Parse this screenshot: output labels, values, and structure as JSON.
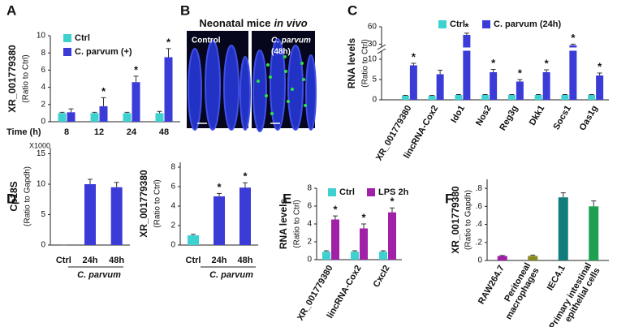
{
  "chart_data": [
    {
      "panel": "A",
      "type": "bar",
      "ylabel": "XR_001779380",
      "ylabel_sub": "(Ratio to Ctrl)",
      "xlabel": "Time (h)",
      "categories": [
        "8",
        "12",
        "24",
        "48"
      ],
      "ylim": [
        0,
        10
      ],
      "yticks": [
        0,
        2,
        4,
        6,
        8,
        10
      ],
      "series": [
        {
          "name": "Ctrl",
          "color": "#3fd0d0",
          "values": [
            1,
            1,
            1,
            1
          ],
          "errors": [
            0.1,
            0.1,
            0.1,
            0.2
          ]
        },
        {
          "name": "C. parvum (+)",
          "color": "#3b3bd8",
          "values": [
            1.1,
            1.8,
            4.6,
            7.5
          ],
          "errors": [
            0.4,
            1,
            0.7,
            1
          ],
          "annotations": [
            null,
            "*",
            "*",
            "*"
          ]
        }
      ]
    },
    {
      "panel": "B",
      "type": "image",
      "title": "Neonatal mice",
      "title_italic": "in vivo",
      "images": [
        {
          "label": "Control"
        },
        {
          "label": "C. parvum",
          "sublabel": "(48h)"
        }
      ]
    },
    {
      "panel": "C",
      "type": "bar",
      "ylabel": "RNA levels",
      "ylabel_sub": "(Ratio to Ctrl)",
      "categories": [
        "XR_001779380",
        "lincRNA-Cox2",
        "Ido1",
        "Nos2",
        "Reg3g",
        "Dkk1",
        "Socs1",
        "Oas1g"
      ],
      "ylim": [
        0,
        60
      ],
      "ybreak": [
        12,
        25
      ],
      "yticks": [
        0,
        5,
        10,
        30,
        60
      ],
      "series": [
        {
          "name": "Ctrl",
          "color": "#3fd0d0",
          "values": [
            1,
            1,
            1.2,
            1.2,
            1.2,
            1.2,
            1.2,
            1.2
          ],
          "errors": [
            0.1,
            0.1,
            0.1,
            0.1,
            0.1,
            0.1,
            0.1,
            0.1
          ]
        },
        {
          "name": "C. parvum (24h)",
          "color": "#3b3bd8",
          "values": [
            8.5,
            6.3,
            46,
            6.8,
            4.5,
            6.8,
            28,
            6
          ],
          "errors": [
            0.5,
            1,
            3,
            0.7,
            0.5,
            0.6,
            2,
            0.6
          ],
          "annotations": [
            "*",
            null,
            "*",
            "*",
            "*",
            "*",
            "*",
            "*"
          ]
        }
      ]
    },
    {
      "panel": "D",
      "type": "bar",
      "ylabel": "Cp18S",
      "ylabel_sub": "(Ratio to Gapdh)",
      "scale_note": "X1000",
      "group_label": "C. parvum",
      "categories": [
        "Ctrl",
        "24h",
        "48h"
      ],
      "ylim": [
        0,
        16
      ],
      "yticks": [
        0,
        5,
        10,
        15
      ],
      "values": [
        0,
        10,
        9.5
      ],
      "errors": [
        0,
        0.8,
        0.8
      ],
      "colors": [
        "#3b3bd8",
        "#3b3bd8",
        "#3b3bd8"
      ]
    },
    {
      "type": "bar",
      "ylabel": "XR_001779380",
      "ylabel_sub": "(Ratio to Ctrl)",
      "group_label": "C. parvum",
      "categories": [
        "Ctrl",
        "24h",
        "48h"
      ],
      "ylim": [
        0,
        8.5
      ],
      "yticks": [
        0,
        2,
        4,
        6,
        8
      ],
      "values": [
        1,
        5,
        5.9
      ],
      "errors": [
        0.1,
        0.3,
        0.5
      ],
      "colors": [
        "#3fd0d0",
        "#3b3bd8",
        "#3b3bd8"
      ],
      "annotations": [
        null,
        "*",
        "*"
      ]
    },
    {
      "panel": "E",
      "type": "bar",
      "ylabel": "RNA levels",
      "ylabel_sub": "(Ratio to Ctrl)",
      "categories": [
        "XR_001779380",
        "lincRNA-Cox2",
        "Cxcl2"
      ],
      "ylim": [
        0,
        8
      ],
      "yticks": [
        0,
        2,
        4,
        6,
        8
      ],
      "series": [
        {
          "name": "Ctrl",
          "color": "#3fd0d0",
          "values": [
            0.9,
            0.9,
            0.9
          ],
          "errors": [
            0.1,
            0.1,
            0.1
          ]
        },
        {
          "name": "LPS 2h",
          "color": "#a020a8",
          "values": [
            4.5,
            3.5,
            5.3
          ],
          "errors": [
            0.4,
            0.5,
            0.5
          ],
          "annotations": [
            "*",
            "*",
            "*"
          ]
        }
      ]
    },
    {
      "panel": "F",
      "type": "bar",
      "ylabel": "XR_001779380",
      "ylabel_sub": "(Ratio to Gapdh)",
      "categories": [
        "RAW264.7",
        "Peritoneal\nmacrophages",
        "IEC4.1",
        "Primary intestinal\nepithelial cells"
      ],
      "ylim": [
        0,
        0.9
      ],
      "yticks": [
        0,
        {
          "value": 0.2,
          "label": ".2"
        },
        {
          "value": 0.4,
          "label": ".4"
        },
        {
          "value": 0.6,
          "label": ".6"
        },
        {
          "value": 0.8,
          "label": ".8"
        }
      ],
      "values": [
        0.05,
        0.05,
        0.7,
        0.6
      ],
      "errors": [
        0.005,
        0.01,
        0.05,
        0.06
      ],
      "colors": [
        "#a020a8",
        "#8a8a20",
        "#127c7c",
        "#1fa050"
      ]
    }
  ]
}
